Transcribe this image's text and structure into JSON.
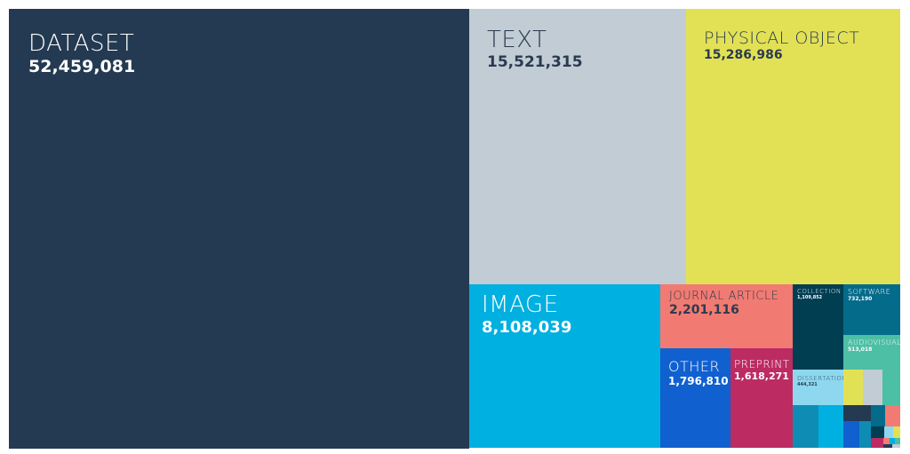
{
  "chart_data": {
    "type": "treemap",
    "items": [
      {
        "label": "DATASET",
        "value": "52,459,081",
        "color": "#243a52"
      },
      {
        "label": "TEXT",
        "value": "15,521,315",
        "color": "#c1ccd4"
      },
      {
        "label": "PHYSICAL OBJECT",
        "value": "15,286,986",
        "color": "#e2e155"
      },
      {
        "label": "IMAGE",
        "value": "8,108,039",
        "color": "#00b0e0"
      },
      {
        "label": "JOURNAL ARTICLE",
        "value": "2,201,116",
        "color": "#f17b72"
      },
      {
        "label": "OTHER",
        "value": "1,796,810",
        "color": "#1060d0"
      },
      {
        "label": "PREPRINT",
        "value": "1,618,271",
        "color": "#bc2b62"
      },
      {
        "label": "COLLECTION",
        "value": "1,109,852",
        "color": "#013e52"
      },
      {
        "label": "SOFTWARE",
        "value": "732,190",
        "color": "#046b8a"
      },
      {
        "label": "AUDIOVISUAL",
        "value": "513,018",
        "color": "#4dbfa5"
      },
      {
        "label": "DISSERTATION",
        "value": "444,321",
        "color": "#8dd8ef"
      }
    ],
    "unlabeled_colors": [
      "#e2e155",
      "#c1ccd4",
      "#4dbfa5",
      "#0e8cb4",
      "#00b0e0",
      "#243a52",
      "#046b8a",
      "#f17b72",
      "#1060d0",
      "#0e8cb4",
      "#013e52",
      "#8dd8ef",
      "#e2e155",
      "#bc2b62",
      "#f17b72",
      "#00b0e0",
      "#4dbfa5",
      "#243a52",
      "#c1ccd4"
    ]
  }
}
